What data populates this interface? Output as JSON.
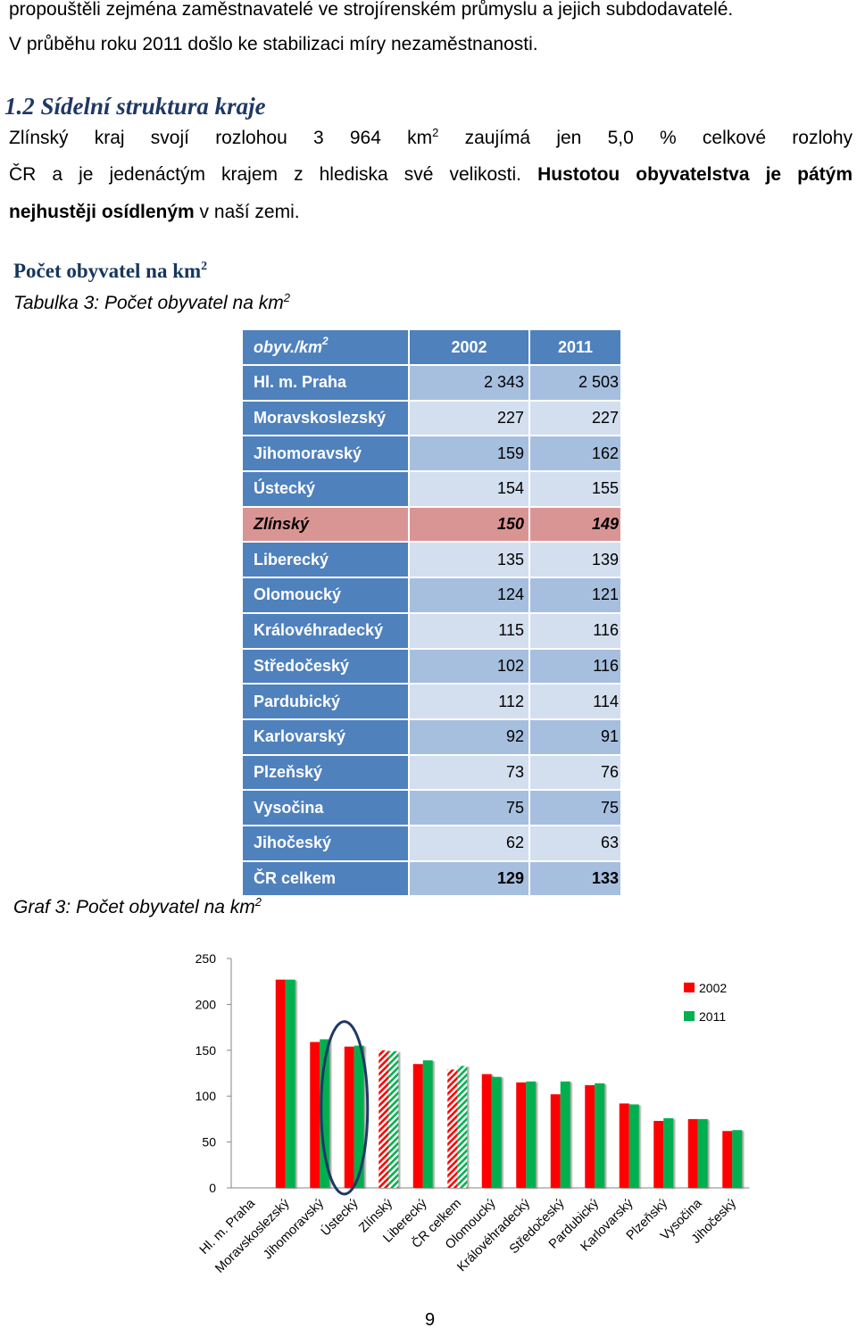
{
  "document": {
    "intro_line_1": "propouštěli zejména zaměstnavatelé ve strojírenském průmyslu a jejich subdodavatelé.",
    "intro_line_2": "V průběhu roku 2011 došlo ke stabilizaci míry nezaměstnanosti.",
    "section_heading": "1.2 Sídelní struktura kraje",
    "paragraph": {
      "line1_a": "Zlínský kraj svojí rozlohou 3 964 km",
      "line1_sup": "2",
      "line1_b": " zaujímá jen 5,0 % celkové rozlohy",
      "line2_a": "ČR a je jedenáctým krajem z hlediska své velikosti. ",
      "line2_bold": "Hustotou obyvatelstva je pátým",
      "line3_bold": "nejhustěji osídleným",
      "line3_b": " v naší zemi."
    },
    "subheading": {
      "text": "Počet obyvatel na km",
      "sup": "2"
    },
    "table_caption": {
      "text": "Tabulka 3: Počet obyvatel na km",
      "sup": "2"
    },
    "chart_caption": {
      "text": "Graf 3: Počet obyvatel na km",
      "sup": "2"
    },
    "page_number": "9"
  },
  "table": {
    "header": {
      "unit": "obyv./km",
      "unit_sup": "2",
      "col_2002": "2002",
      "col_2011": "2011"
    },
    "rows": [
      {
        "region": "Hl. m. Praha",
        "v2002": "2 343",
        "v2011": "2 503"
      },
      {
        "region": "Moravskoslezský",
        "v2002": "227",
        "v2011": "227"
      },
      {
        "region": "Jihomoravský",
        "v2002": "159",
        "v2011": "162"
      },
      {
        "region": "Ústecký",
        "v2002": "154",
        "v2011": "155"
      },
      {
        "region": "Zlínský",
        "v2002": "150",
        "v2011": "149",
        "highlight": true
      },
      {
        "region": "Liberecký",
        "v2002": "135",
        "v2011": "139"
      },
      {
        "region": "Olomoucký",
        "v2002": "124",
        "v2011": "121"
      },
      {
        "region": "Královéhradecký",
        "v2002": "115",
        "v2011": "116"
      },
      {
        "region": "Středočeský",
        "v2002": "102",
        "v2011": "116"
      },
      {
        "region": "Pardubický",
        "v2002": "112",
        "v2011": "114"
      },
      {
        "region": "Karlovarský",
        "v2002": "92",
        "v2011": "91"
      },
      {
        "region": "Plzeňský",
        "v2002": "73",
        "v2011": "76"
      },
      {
        "region": "Vysočina",
        "v2002": "75",
        "v2011": "75"
      },
      {
        "region": "Jihočeský",
        "v2002": "62",
        "v2011": "63"
      },
      {
        "region": "ČR celkem",
        "v2002": "129",
        "v2011": "133",
        "total": true
      }
    ]
  },
  "chart_data": {
    "type": "bar",
    "categories": [
      "Hl. m. Praha",
      "Moravskoslezský",
      "Jihomoravský",
      "Ústecký",
      "Zlínský",
      "Liberecký",
      "ČR celkem",
      "Olomoucký",
      "Královéhradecký",
      "Středočeský",
      "Pardubický",
      "Karlovarský",
      "Plzeňský",
      "Vysočina",
      "Jihočeský"
    ],
    "series": [
      {
        "name": "2002",
        "color": "#FF0000",
        "values": [
          null,
          227,
          159,
          154,
          150,
          135,
          129,
          124,
          115,
          102,
          112,
          92,
          73,
          75,
          62
        ]
      },
      {
        "name": "2011",
        "color": "#00B050",
        "values": [
          null,
          227,
          162,
          155,
          149,
          139,
          133,
          121,
          116,
          116,
          114,
          91,
          76,
          75,
          63
        ]
      }
    ],
    "ylim": [
      0,
      250
    ],
    "yticks": [
      0,
      50,
      100,
      150,
      200,
      250
    ],
    "grid": false,
    "legend": "top-right",
    "hatched": [
      false,
      false,
      false,
      false,
      true,
      false,
      true,
      false,
      false,
      false,
      false,
      false,
      false,
      false,
      false
    ],
    "circled": [
      false,
      false,
      false,
      true,
      false,
      false,
      false,
      false,
      false,
      false,
      false,
      false,
      false,
      false,
      false
    ],
    "circle_color": "#1F3864"
  }
}
